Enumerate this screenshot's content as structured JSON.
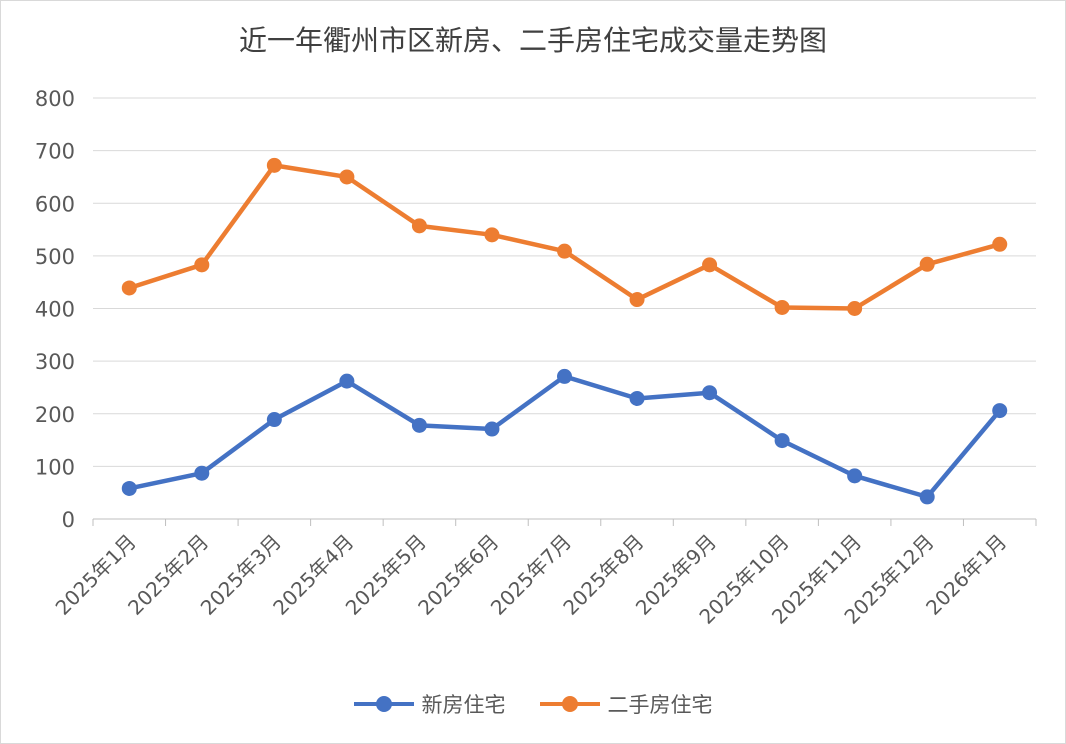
{
  "chart_data": {
    "type": "line",
    "title": "近一年衢州市区新房、二手房住宅成交量走势图",
    "xlabel": "",
    "ylabel": "",
    "ylim": [
      0,
      800
    ],
    "yticks": [
      0,
      100,
      200,
      300,
      400,
      500,
      600,
      700,
      800
    ],
    "grid": true,
    "legend_position": "bottom",
    "categories": [
      "2025年1月",
      "2025年2月",
      "2025年3月",
      "2025年4月",
      "2025年5月",
      "2025年6月",
      "2025年7月",
      "2025年8月",
      "2025年9月",
      "2025年10月",
      "2025年11月",
      "2025年12月",
      "2026年1月"
    ],
    "series": [
      {
        "name": "新房住宅",
        "color": "#4472C4",
        "values": [
          58,
          87,
          189,
          262,
          178,
          171,
          271,
          229,
          240,
          149,
          82,
          42,
          206
        ]
      },
      {
        "name": "二手房住宅",
        "color": "#ED7D31",
        "values": [
          439,
          483,
          672,
          650,
          557,
          540,
          509,
          417,
          483,
          402,
          400,
          484,
          522
        ]
      }
    ]
  }
}
